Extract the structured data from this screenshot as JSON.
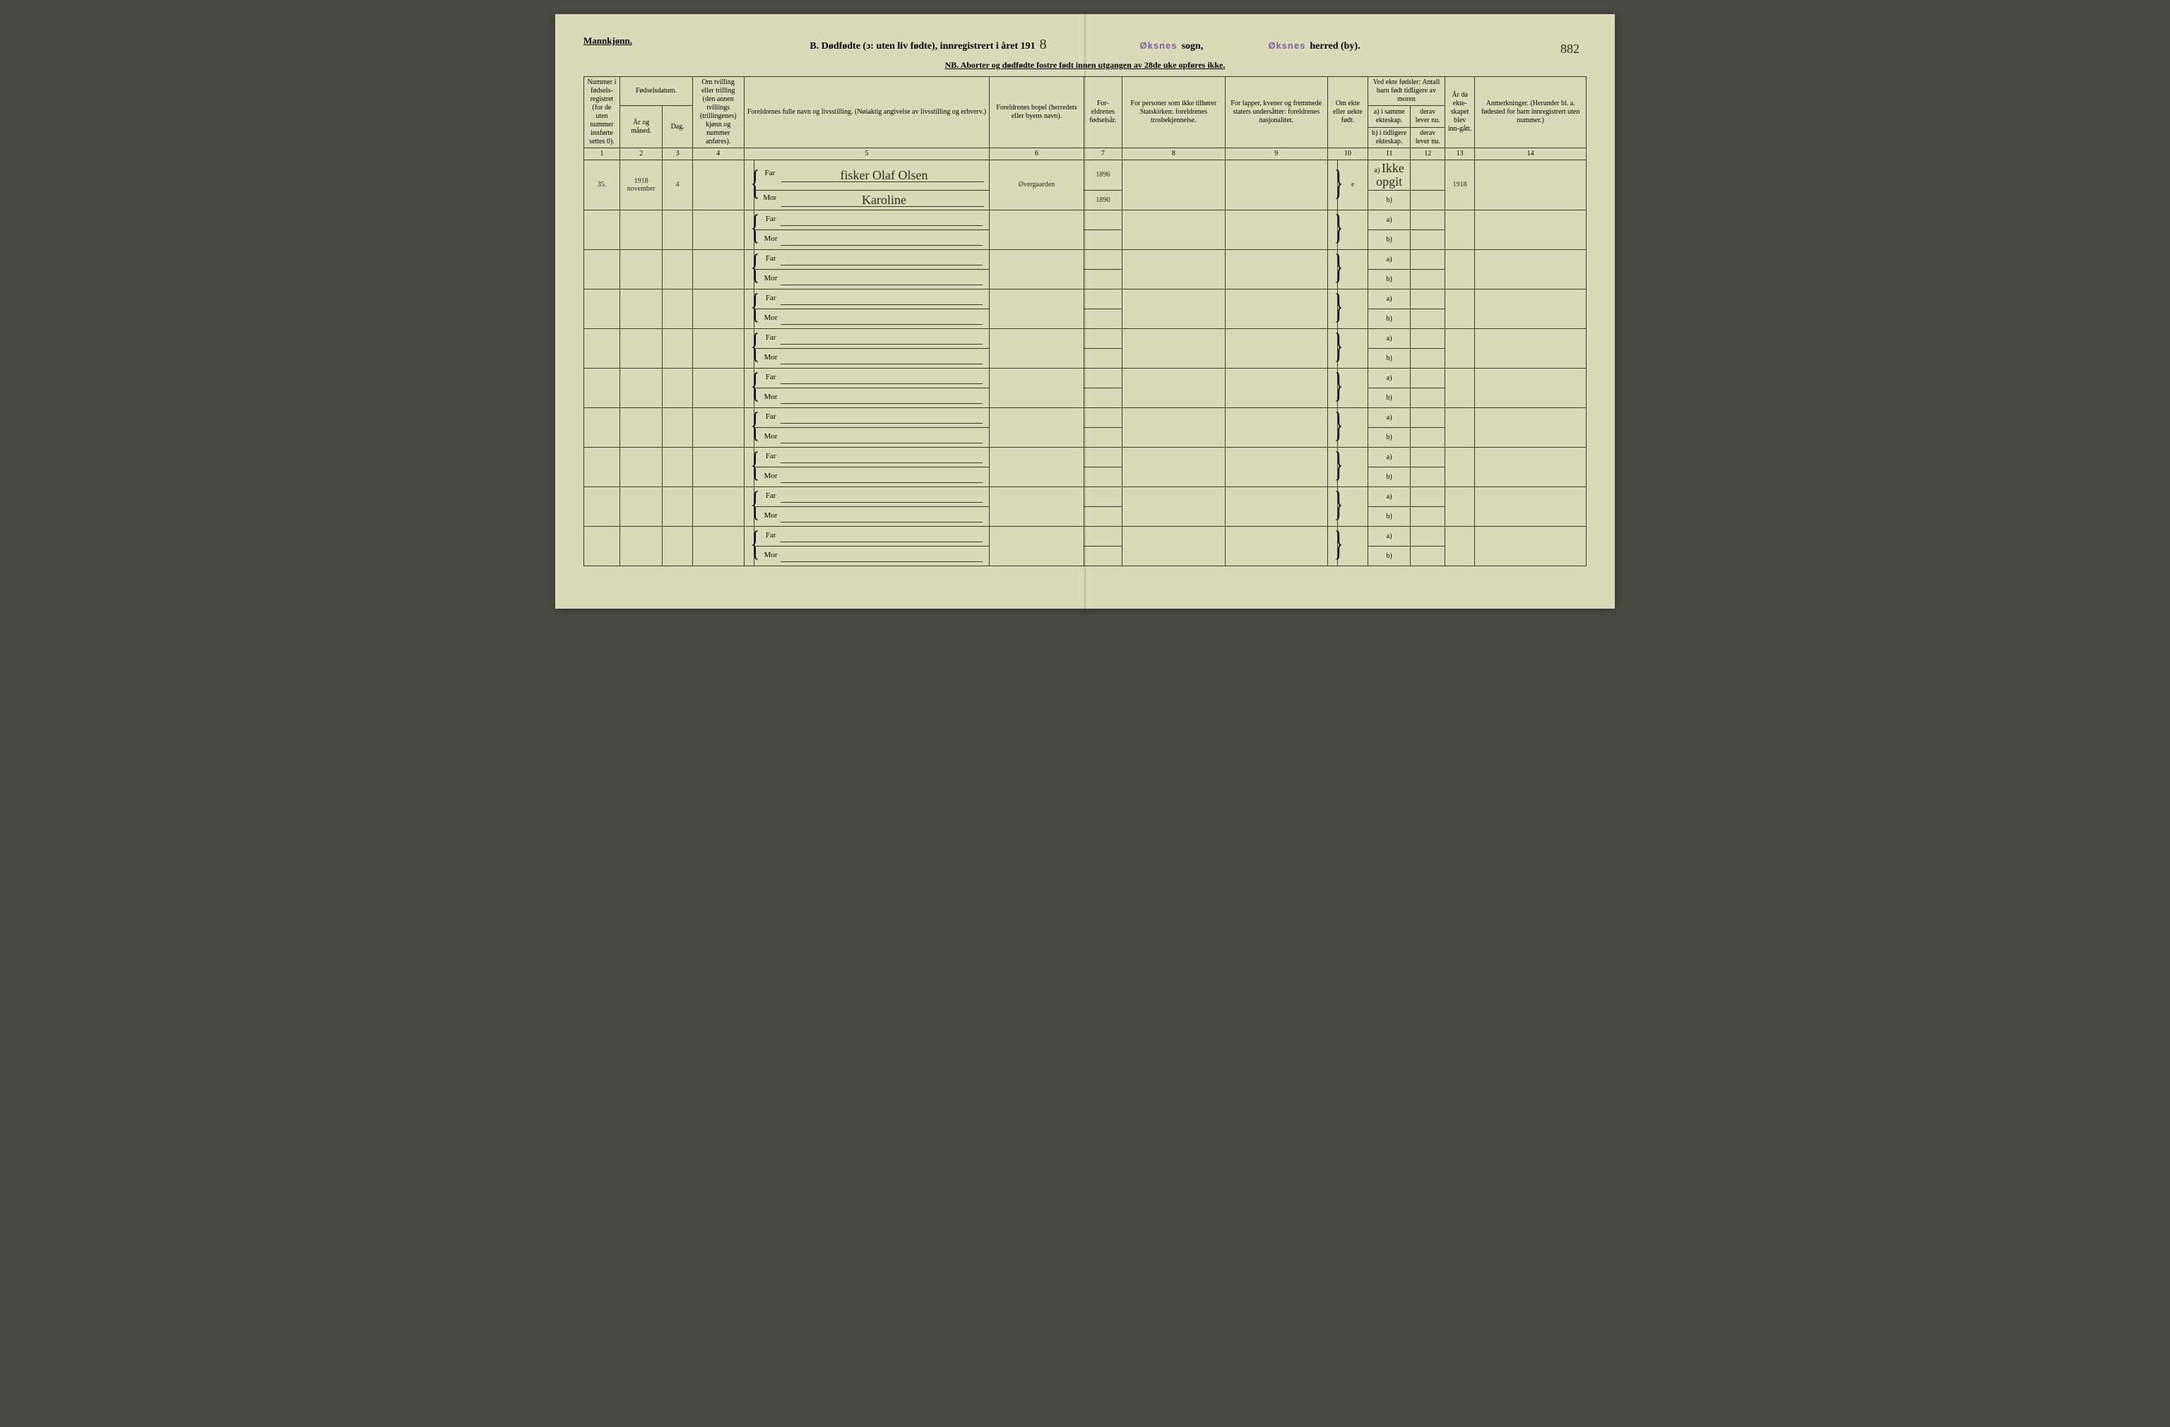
{
  "page_number_handwritten": "882",
  "header": {
    "mannkjonn": "Mannkjønn.",
    "title_prefix": "B. Dødfødte (ɔ: uten liv fødte), innregistrert i året 191",
    "title_year_hand": "8",
    "sogn_stamp": "Øksnes",
    "sogn_label": "sogn,",
    "herred_stamp": "Øksnes",
    "herred_label": "herred (by).",
    "nb": "NB. Aborter og dødfødte fostre født innen utgangen av 28de uke opføres ikke."
  },
  "columns": {
    "c1": "Nummer i fødsels-registret (for de uten nummer innførte settes 0).",
    "c2_top": "Fødselsdatum.",
    "c2": "År og måned.",
    "c3": "Dag.",
    "c4": "Om tvilling eller trilling (den annen tvillings (trillingenes) kjønn og nummer anføres).",
    "c5": "Foreldrenes fulle navn og livsstilling. (Nøiaktig angivelse av livsstilling og erhverv.)",
    "c6": "Foreldrenes bopel (herredets eller byens navn).",
    "c7": "For-eldrenes fødselsår.",
    "c8": "For personer som ikke tilhører Statskirken: foreldrenes trosbekjennelse.",
    "c9": "For lapper, kvener og fremmede staters undersåtter: foreldrenes nasjonalitet.",
    "c10": "Om ekte eller uekte født.",
    "c11_top": "Ved ekte fødsler: Antall barn født tidligere av moren",
    "c11a": "a) i samme ekteskap.",
    "c11b": "b) i tidligere ekteskap.",
    "c12a": "derav lever nu.",
    "c12b": "derav lever nu.",
    "c13": "År da ekte-skapet blev inn-gått.",
    "c14": "Anmerkninger. (Herunder bl. a. fødested for barn innregistrert uten nummer.)"
  },
  "col_numbers": [
    "1",
    "2",
    "3",
    "4",
    "5",
    "6",
    "7",
    "8",
    "9",
    "10",
    "11",
    "12",
    "13",
    "14"
  ],
  "far_label": "Far",
  "mor_label": "Mor",
  "a_label": "a)",
  "b_label": "b)",
  "entry1": {
    "num": "35.",
    "year": "1918",
    "month": "november",
    "day": "4",
    "far": "fisker Olaf Olsen",
    "mor": "Karoline",
    "bopel": "Øvergaarden",
    "far_fodselsaar": "1896",
    "mor_fodselsaar": "1890",
    "ekte": "e",
    "ab_a": "Ikke opgit",
    "aar_ekteskap": "1918"
  }
}
